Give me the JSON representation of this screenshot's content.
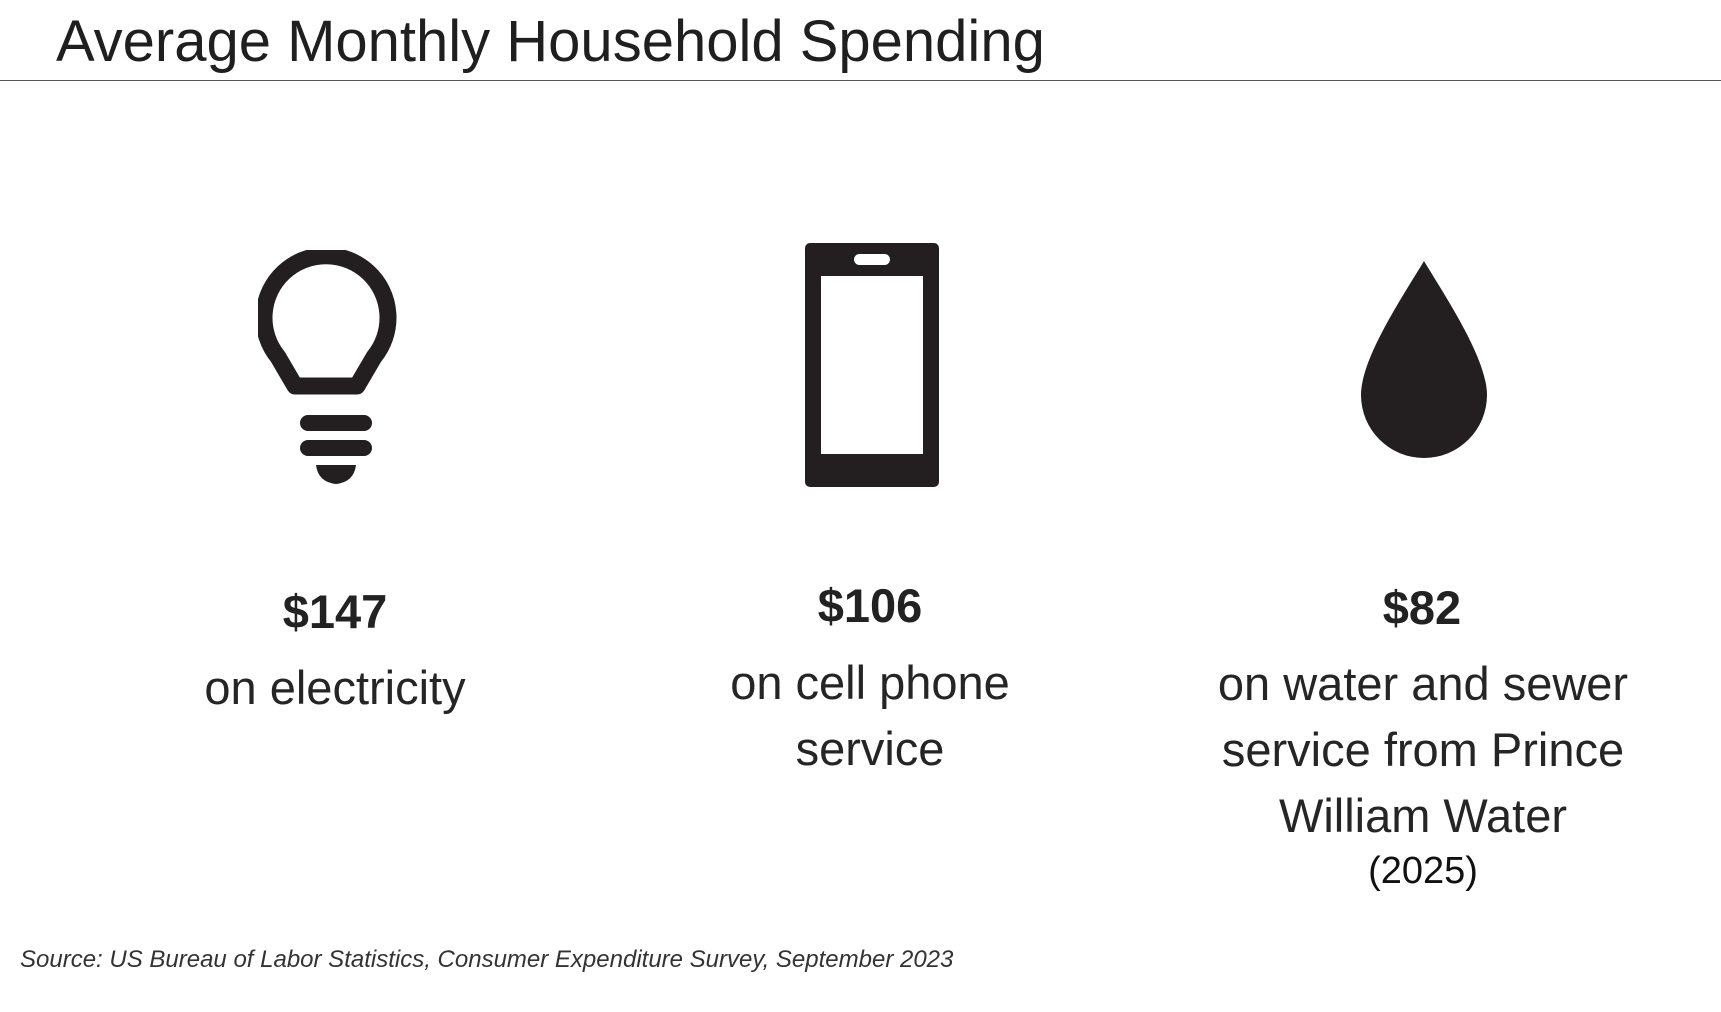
{
  "page": {
    "title": "Average Monthly Household Spending",
    "source": "Source: US Bureau of Labor Statistics, Consumer Expenditure Survey, September 2023"
  },
  "items": [
    {
      "icon": "lightbulb-icon",
      "amount": "$147",
      "description": "on electricity"
    },
    {
      "icon": "cell-phone-icon",
      "amount": "$106",
      "description": "on cell phone service"
    },
    {
      "icon": "water-drop-icon",
      "amount": "$82",
      "description": "on water and sewer service from Prince William Water",
      "note": "(2025)"
    }
  ],
  "colors": {
    "icon": "#231f20",
    "text": "#222222"
  }
}
